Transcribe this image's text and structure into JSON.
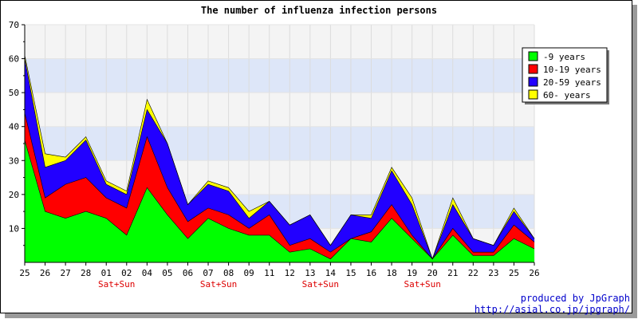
{
  "chart_data": {
    "type": "area",
    "stacked": true,
    "title": "The number of influenza infection persons",
    "categories": [
      "25",
      "26",
      "27",
      "28",
      "01",
      "02",
      "04",
      "05",
      "06",
      "07",
      "08",
      "09",
      "11",
      "12",
      "13",
      "14",
      "15",
      "16",
      "18",
      "19",
      "20",
      "21",
      "22",
      "23",
      "25",
      "26"
    ],
    "weekend_labels": [
      "",
      "",
      "",
      "",
      "Sat+Sun",
      "",
      "",
      "",
      "",
      "Sat+Sun",
      "",
      "",
      "",
      "",
      "Sat+Sun",
      "",
      "",
      "",
      "",
      "Sat+Sun",
      "",
      "",
      "",
      "",
      "",
      ""
    ],
    "ylim": [
      0,
      70
    ],
    "yticks": [
      10,
      20,
      30,
      40,
      50,
      60,
      70
    ],
    "grid": true,
    "legend_position": "top-right",
    "series": [
      {
        "name": "-9 years",
        "color": "#00ff00",
        "values": [
          36,
          15,
          13,
          15,
          13,
          8,
          22,
          14,
          7,
          13,
          10,
          8,
          8,
          3,
          4,
          1,
          7,
          6,
          13,
          7,
          1,
          8,
          2,
          2,
          7,
          4
        ]
      },
      {
        "name": "10-19 years",
        "color": "#ff0000",
        "values": [
          8,
          4,
          10,
          10,
          6,
          8,
          15,
          8,
          5,
          3,
          4,
          2,
          6,
          2,
          3,
          2,
          0,
          3,
          4,
          1,
          0,
          2,
          1,
          1,
          4,
          2
        ]
      },
      {
        "name": "20-59 years",
        "color": "#2200ff",
        "values": [
          16,
          9,
          7,
          11,
          4,
          4,
          8,
          13,
          5,
          7,
          7,
          3,
          4,
          6,
          7,
          2,
          7,
          4,
          10,
          9,
          0,
          7,
          4,
          2,
          4,
          1
        ]
      },
      {
        "name": "60- years",
        "color": "#ffff00",
        "values": [
          1,
          4,
          1,
          1,
          1,
          1,
          3,
          0,
          0,
          1,
          1,
          2,
          0,
          0,
          0,
          0,
          0,
          1,
          1,
          2,
          0,
          2,
          0,
          0,
          1,
          0
        ]
      }
    ]
  },
  "credit": {
    "line1": "produced by JpGraph",
    "line2": "http://asial.co.jp/jpgraph/"
  }
}
